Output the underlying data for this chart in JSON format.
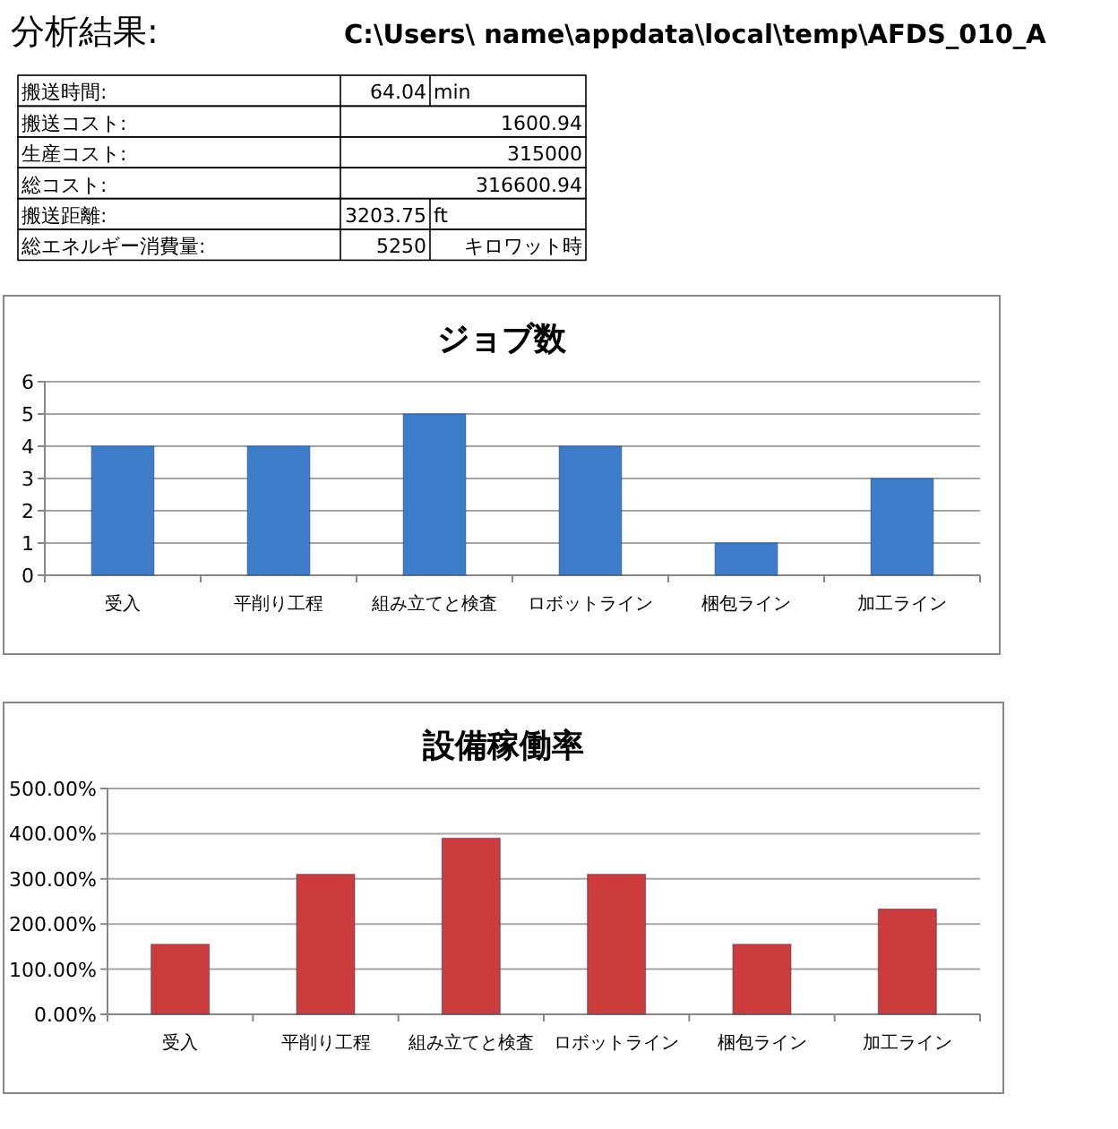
{
  "chart_data": [
    {
      "type": "other",
      "title": "分析結果:",
      "subtitle": "C:\\Users\\ name\\appdata\\local\\temp\\AFDS_010_A",
      "annotations": [
        "搬送時間:",
        "64.04",
        "min",
        "搬送コスト:",
        "1600.94",
        "生産コスト:",
        "315000",
        "総コスト:",
        "316600.94",
        "搬送距離:",
        "3203.75",
        "ft",
        "総エネルギー消費量:",
        "5250",
        "キロワット時"
      ]
    },
    {
      "type": "bar",
      "title": "ジョブ数",
      "categories": [
        "受入",
        "平削り工程",
        "組み立てと検査",
        "ロボットライン",
        "梱包ライン",
        "加工ライン"
      ],
      "values": [
        4,
        4,
        5,
        4,
        1,
        3
      ],
      "color": "#3c7cc8",
      "ylim": [
        0,
        6
      ],
      "yticks": [
        0,
        1,
        2,
        3,
        4,
        5,
        6
      ],
      "grid": "y"
    },
    {
      "type": "bar",
      "title": "設備稼働率",
      "categories": [
        "受入",
        "平削り工程",
        "組み立てと検査",
        "ロボットライン",
        "梱包ライン",
        "加工ライン"
      ],
      "values": [
        155,
        310,
        390,
        310,
        155,
        233
      ],
      "color": "#cc3c3c",
      "ylim": [
        0,
        500
      ],
      "yticks": [
        {
          "value": 0,
          "label": "0.00%"
        },
        {
          "value": 100,
          "label": "100.00%"
        },
        {
          "value": 200,
          "label": "200.00%"
        },
        {
          "value": 300,
          "label": "300.00%"
        },
        {
          "value": 400,
          "label": "400.00%"
        },
        {
          "value": 500,
          "label": "500.00%"
        }
      ],
      "grid": "y"
    }
  ]
}
